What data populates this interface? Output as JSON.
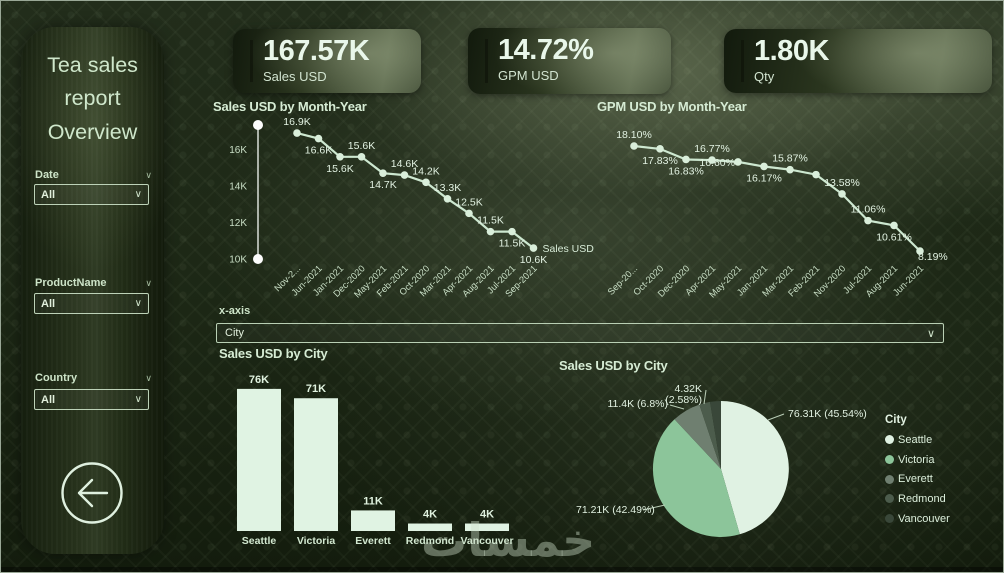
{
  "sidebar": {
    "title": "Tea sales report Overview",
    "slicers": [
      {
        "label": "Date",
        "value": "All"
      },
      {
        "label": "ProductName",
        "value": "All"
      },
      {
        "label": "Country",
        "value": "All"
      }
    ]
  },
  "kpis": [
    {
      "value": "167.57K",
      "label": "Sales USD"
    },
    {
      "value": "14.72%",
      "label": "GPM USD"
    },
    {
      "value": "1.80K",
      "label": "Qty"
    }
  ],
  "xaxis_selector": {
    "label": "x-axis",
    "value": "City"
  },
  "watermark": "خمسات",
  "colors": {
    "accent_text": "#e9f7ea",
    "mint_text": "#d6ecd4",
    "line": "#cde8d0",
    "bar_fill": "#e0f3e3"
  },
  "chart_data": [
    {
      "id": "sales_line",
      "type": "line",
      "title": "Sales USD by Month-Year",
      "series_label": "Sales USD",
      "categories": [
        "Nov-2...",
        "Jun-2021",
        "Jan-2021",
        "Dec-2020",
        "May-2021",
        "Feb-2021",
        "Oct-2020",
        "Mar-2021",
        "Apr-2021",
        "Aug-2021",
        "Jul-2021",
        "Sep-2021"
      ],
      "values": [
        16.9,
        16.6,
        15.6,
        15.6,
        14.7,
        14.6,
        14.2,
        13.3,
        12.5,
        11.5,
        11.5,
        10.6
      ],
      "labels": [
        "16.9K",
        "16.6K",
        "15.6K",
        "15.6K",
        "14.7K",
        "14.6K",
        "14.2K",
        "13.3K",
        "12.5K",
        "11.5K",
        "11.5K",
        "10.6K"
      ],
      "label_side": [
        "a",
        "b",
        "b",
        "a",
        "b",
        "a",
        "a",
        "a",
        "a",
        "a",
        "b",
        "b"
      ],
      "y_ticks": [
        "16K",
        "14K",
        "12K",
        "10K"
      ],
      "y_tick_values": [
        16,
        14,
        12,
        10
      ],
      "ylim": [
        9.5,
        17.5
      ],
      "has_zoom_slider": true,
      "xlabel": "",
      "ylabel": ""
    },
    {
      "id": "gpm_line",
      "type": "line",
      "title": "GPM USD by Month-Year",
      "series_label": "",
      "categories": [
        "Sep-20...",
        "Oct-2020",
        "Dec-2020",
        "Apr-2021",
        "May-2021",
        "Jan-2021",
        "Mar-2021",
        "Feb-2021",
        "Nov-2020",
        "Jul-2021",
        "Aug-2021",
        "Jun-2021"
      ],
      "values": [
        18.1,
        17.83,
        16.83,
        16.77,
        16.6,
        16.17,
        15.87,
        15.4,
        13.58,
        11.06,
        10.61,
        8.19
      ],
      "labels": [
        "18.10%",
        "17.83%",
        "16.83%",
        "16.77%",
        "16.60%",
        "16.17%",
        "15.87%",
        "",
        "13.58%",
        "11.06%",
        "10.61%",
        "8.19%"
      ],
      "label_side": [
        "a",
        "b",
        "b",
        "a",
        "l",
        "b",
        "a",
        "",
        "a",
        "a",
        "b",
        "r"
      ],
      "y_ticks": [],
      "y_tick_values": [],
      "ylim": [
        7.5,
        19.0
      ],
      "has_zoom_slider": false,
      "xlabel": "",
      "ylabel": ""
    },
    {
      "id": "city_bar",
      "type": "bar",
      "title": "Sales USD by City",
      "categories": [
        "Seattle",
        "Victoria",
        "Everett",
        "Redmond",
        "Vancouver"
      ],
      "values": [
        76,
        71,
        11,
        4,
        4
      ],
      "labels": [
        "76K",
        "71K",
        "11K",
        "4K",
        "4K"
      ],
      "ylim": [
        0,
        80
      ]
    },
    {
      "id": "city_pie",
      "type": "pie",
      "title": "Sales USD by City",
      "legend_title": "City",
      "legend_position": "right",
      "categories": [
        "Seattle",
        "Victoria",
        "Everett",
        "Redmond",
        "Vancouver"
      ],
      "values": [
        45.54,
        42.49,
        6.8,
        2.58,
        2.58
      ],
      "labels": [
        "76.31K (45.54%)",
        "71.21K (42.49%)",
        "11.4K (6.8%)",
        "4.32K (2.58%)",
        ""
      ],
      "colors": [
        "#e0f2e3",
        "#8cc59a",
        "#6f7f70",
        "#4c5c4c",
        "#394739"
      ]
    }
  ]
}
